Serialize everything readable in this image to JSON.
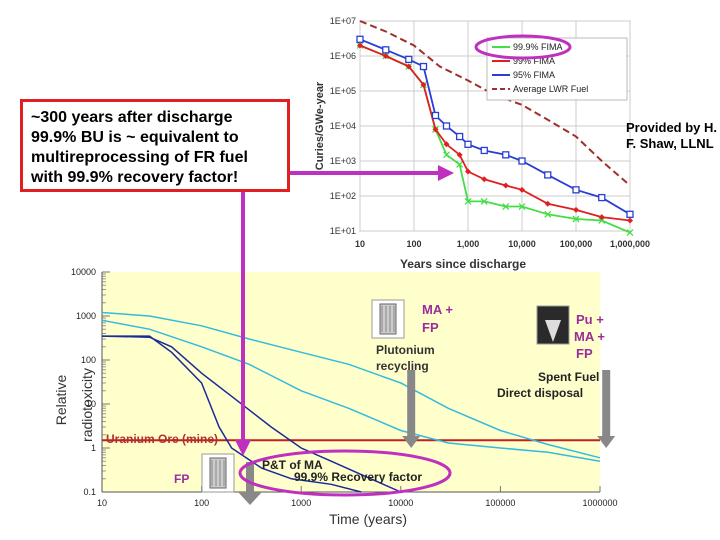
{
  "callout": {
    "text": "~300 years after discharge 99.9% BU is ~ equivalent to multireprocessing of FR fuel with 99.9% recovery factor!"
  },
  "credit": {
    "text": "Provided by H. F. Shaw, LLNL"
  },
  "chart_data": [
    {
      "type": "line",
      "title": "",
      "xlabel": "Years since discharge",
      "ylabel": "Curies/GWe-year",
      "xscale": "log",
      "yscale": "log",
      "xlim": [
        10,
        1000000
      ],
      "ylim": [
        10,
        10000000
      ],
      "x_ticks": [
        "10",
        "100",
        "1,000",
        "10,000",
        "100,000",
        "1,000,000"
      ],
      "y_ticks": [
        "1E+01",
        "1E+02",
        "1E+03",
        "1E+04",
        "1E+05",
        "1E+06",
        "1E+07"
      ],
      "grid": true,
      "legend_position": "top-right",
      "series": [
        {
          "name": "99.9% FIMA",
          "color": "#44dd44",
          "points": [
            [
              10,
              2000000
            ],
            [
              30,
              1000000
            ],
            [
              80,
              500000
            ],
            [
              150,
              150000
            ],
            [
              250,
              8000
            ],
            [
              400,
              1500
            ],
            [
              700,
              800
            ],
            [
              1000,
              70
            ],
            [
              2000,
              70
            ],
            [
              5000,
              50
            ],
            [
              10000,
              50
            ],
            [
              30000,
              30
            ],
            [
              100000,
              22
            ],
            [
              300000,
              20
            ],
            [
              1000000,
              9
            ]
          ]
        },
        {
          "name": "99% FIMA",
          "color": "#e02020",
          "points": [
            [
              10,
              2000000
            ],
            [
              30,
              1000000
            ],
            [
              80,
              500000
            ],
            [
              150,
              150000
            ],
            [
              250,
              8000
            ],
            [
              400,
              3000
            ],
            [
              700,
              1500
            ],
            [
              1000,
              500
            ],
            [
              2000,
              300
            ],
            [
              5000,
              200
            ],
            [
              10000,
              150
            ],
            [
              30000,
              60
            ],
            [
              100000,
              40
            ],
            [
              300000,
              25
            ],
            [
              1000000,
              20
            ]
          ]
        },
        {
          "name": "95% FIMA",
          "color": "#2a3ed6",
          "points": [
            [
              10,
              3000000
            ],
            [
              30,
              1500000
            ],
            [
              80,
              800000
            ],
            [
              150,
              500000
            ],
            [
              250,
              20000
            ],
            [
              400,
              10000
            ],
            [
              700,
              5000
            ],
            [
              1000,
              3000
            ],
            [
              2000,
              2000
            ],
            [
              5000,
              1500
            ],
            [
              10000,
              1000
            ],
            [
              30000,
              400
            ],
            [
              100000,
              150
            ],
            [
              300000,
              90
            ],
            [
              1000000,
              30
            ]
          ]
        },
        {
          "name": "Average LWR Fuel",
          "color": "#a0302a",
          "dashed": true,
          "points": [
            [
              10,
              10000000
            ],
            [
              30,
              5000000
            ],
            [
              100,
              2000000
            ],
            [
              300,
              500000
            ],
            [
              1000,
              200000
            ],
            [
              3000,
              80000
            ],
            [
              10000,
              40000
            ],
            [
              30000,
              15000
            ],
            [
              100000,
              5000
            ],
            [
              300000,
              1000
            ],
            [
              1000000,
              200
            ]
          ]
        }
      ]
    },
    {
      "type": "line",
      "title": "",
      "xlabel": "Time  (years)",
      "ylabel": "Relative radiotoxicity",
      "xscale": "log",
      "yscale": "log",
      "xlim": [
        10,
        1000000
      ],
      "ylim": [
        0.1,
        10000
      ],
      "x_ticks": [
        "10",
        "100",
        "1000",
        "10000",
        "100000",
        "1000000"
      ],
      "y_ticks": [
        "0.1",
        "1",
        "10",
        "100",
        "1000",
        "10000"
      ],
      "series": [
        {
          "name": "Spent Fuel",
          "color": "#33bbdd",
          "points": [
            [
              10,
              1200
            ],
            [
              30,
              1000
            ],
            [
              100,
              600
            ],
            [
              300,
              300
            ],
            [
              1000,
              150
            ],
            [
              3000,
              80
            ],
            [
              10000,
              30
            ],
            [
              30000,
              8
            ],
            [
              100000,
              2.5
            ],
            [
              300000,
              1.2
            ],
            [
              1000000,
              0.6
            ]
          ]
        },
        {
          "name": "MA + FP",
          "color": "#33bbdd",
          "points": [
            [
              10,
              800
            ],
            [
              30,
              500
            ],
            [
              100,
              200
            ],
            [
              300,
              80
            ],
            [
              1000,
              20
            ],
            [
              3000,
              8
            ],
            [
              10000,
              2.5
            ],
            [
              30000,
              1.3
            ],
            [
              100000,
              1
            ],
            [
              300000,
              0.8
            ],
            [
              1000000,
              0.5
            ]
          ]
        },
        {
          "name": "FP",
          "color": "#1a2a99",
          "points": [
            [
              10,
              350
            ],
            [
              30,
              350
            ],
            [
              50,
              150
            ],
            [
              100,
              30
            ],
            [
              150,
              3
            ],
            [
              200,
              1
            ],
            [
              400,
              0.35
            ],
            [
              800,
              0.2
            ],
            [
              2000,
              0.15
            ],
            [
              4000,
              0.1
            ]
          ]
        },
        {
          "name": "P&T of MA",
          "color": "#1a2a99",
          "points": [
            [
              10,
              350
            ],
            [
              30,
              330
            ],
            [
              50,
              200
            ],
            [
              100,
              50
            ],
            [
              200,
              15
            ],
            [
              500,
              3
            ],
            [
              1000,
              1
            ],
            [
              2000,
              0.5
            ],
            [
              5000,
              0.2
            ],
            [
              10000,
              0.1
            ]
          ]
        }
      ],
      "reference_lines": [
        {
          "name": "Uranium Ore (mine)",
          "y": 1.5,
          "color": "#c02020"
        }
      ],
      "annotations": {
        "ma_fp": "MA + FP",
        "pu_recycle": "Plutonium recycling",
        "pu_ma_fp": "Pu + MA + FP",
        "spent_fuel": "Spent Fuel Direct disposal",
        "uranium_ore": "Uranium Ore (mine)",
        "fp": "FP",
        "pt_ma": "P&T of MA",
        "recovery": "99.9% Recovery factor"
      }
    }
  ]
}
